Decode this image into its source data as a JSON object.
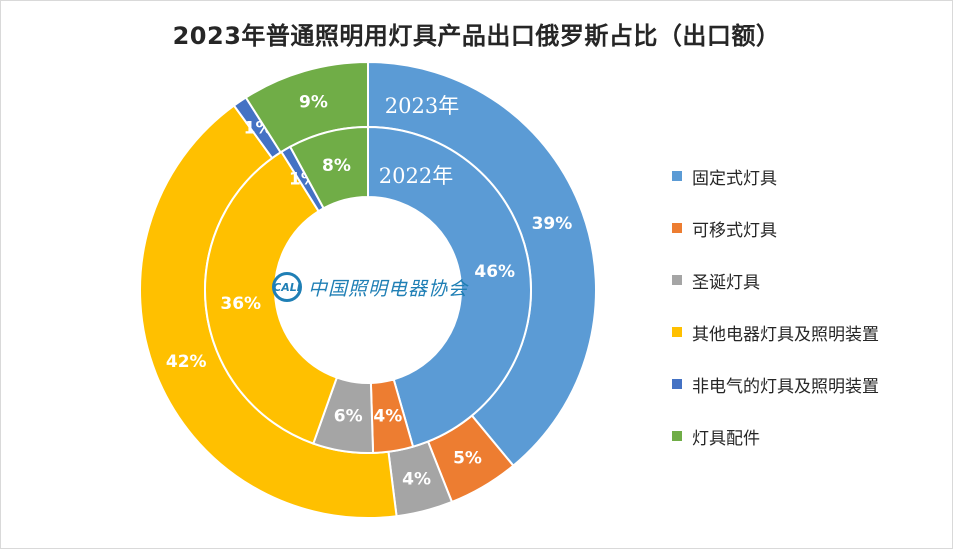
{
  "chart_data": {
    "type": "donut",
    "title": "2023年普通照明用灯具产品出口俄罗斯占比（出口额）",
    "categories": [
      "固定式灯具",
      "可移式灯具",
      "圣诞灯具",
      "其他电器灯具及照明装置",
      "非电气的灯具及照明装置",
      "灯具配件"
    ],
    "colors": [
      "#5b9bd5",
      "#ed7d31",
      "#a5a5a5",
      "#ffc000",
      "#4472c4",
      "#70ad47"
    ],
    "series": [
      {
        "name": "2023年",
        "ring": "outer",
        "values": [
          39,
          5,
          4,
          42,
          1,
          9
        ],
        "labels": [
          "39%",
          "5%",
          "4%",
          "42%",
          "1%",
          "9%"
        ]
      },
      {
        "name": "2022年",
        "ring": "inner",
        "values": [
          46,
          4,
          6,
          36,
          1,
          8
        ],
        "labels": [
          "46%",
          "4%",
          "6%",
          "36%",
          "1%",
          "8%"
        ]
      }
    ],
    "legend_position": "right"
  },
  "logo": {
    "mark": "CALI",
    "text": "中国照明电器协会"
  }
}
